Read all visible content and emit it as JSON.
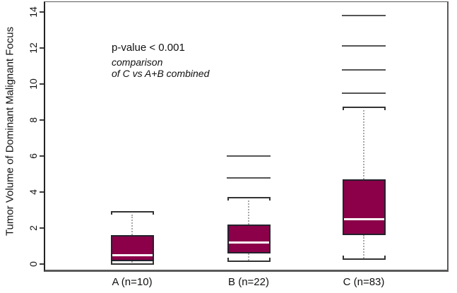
{
  "chart_data": {
    "type": "boxplot",
    "title": "",
    "xlabel": "",
    "ylabel": "Tumor Volume of Dominant Malignant Focus",
    "ylim": [
      0,
      14
    ],
    "yticks": [
      0,
      2,
      4,
      6,
      8,
      10,
      12,
      14
    ],
    "grid": false,
    "legend": null,
    "categories": [
      "A (n=10)",
      "B (n=22)",
      "C (n=83)"
    ],
    "series": [
      {
        "name": "A (n=10)",
        "n": 10,
        "whisker_low": 0.05,
        "q1": 0.15,
        "median": 0.5,
        "q3": 1.6,
        "whisker_high": 2.9,
        "outliers": []
      },
      {
        "name": "B (n=22)",
        "n": 22,
        "whisker_low": 0.2,
        "q1": 0.6,
        "median": 1.2,
        "q3": 2.2,
        "whisker_high": 3.7,
        "outliers": [
          4.8,
          6.0
        ]
      },
      {
        "name": "C (n=83)",
        "n": 83,
        "whisker_low": 0.3,
        "q1": 1.6,
        "median": 2.5,
        "q3": 4.7,
        "whisker_high": 8.7,
        "outliers": [
          9.5,
          10.8,
          12.1,
          13.8
        ]
      }
    ],
    "annotation": {
      "line1": "p-value < 0.001",
      "line2": "comparison",
      "line3": "of C vs A+B combined"
    },
    "colors": {
      "box_fill": "#8B0049",
      "box_border": "#23232d",
      "median": "#ffffff",
      "whisker": "#333333",
      "outlier": "#555555",
      "dotted": "#a8a8a8",
      "axis": "#3c3c3c",
      "text": "#111111"
    }
  }
}
